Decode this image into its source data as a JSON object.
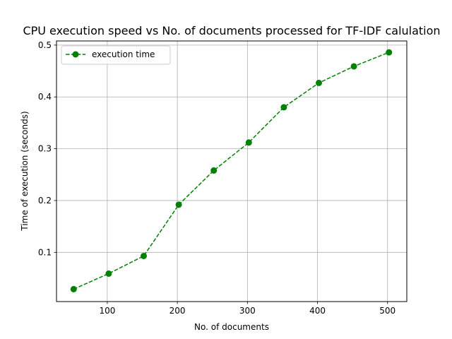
{
  "chart_data": {
    "type": "line",
    "title": "CPU execution speed vs No. of documents processed for TF-IDF calulation",
    "xlabel": "No. of documents",
    "ylabel": "Time of execution (seconds)",
    "xlim": [
      27.5,
      527.5
    ],
    "ylim": [
      0.005,
      0.508
    ],
    "xticks": [
      100,
      200,
      300,
      400,
      500
    ],
    "yticks": [
      0.1,
      0.2,
      0.3,
      0.4,
      0.5
    ],
    "grid": true,
    "legend_position": "top-left",
    "series": [
      {
        "name": "execution time",
        "color": "#008000",
        "linestyle": "dashed",
        "marker": "circle",
        "x": [
          52,
          102,
          152,
          202,
          252,
          302,
          352,
          402,
          452,
          502
        ],
        "y": [
          0.029,
          0.059,
          0.093,
          0.192,
          0.258,
          0.312,
          0.38,
          0.427,
          0.459,
          0.486
        ]
      }
    ]
  }
}
